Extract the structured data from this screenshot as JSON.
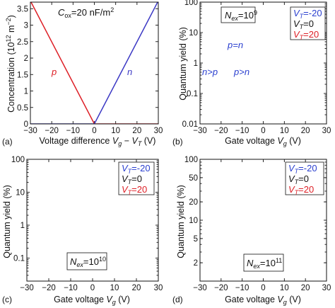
{
  "colors": {
    "n_curve": "#3b38c4",
    "p_curve": "#dd1f26",
    "VT_neg20": "#2a3fcf",
    "VT_0": "#111111",
    "VT_20": "#dd1f26",
    "frame": "#111111"
  },
  "chart_data": [
    {
      "panel": "(a)",
      "type": "line",
      "xlabel": "Voltage difference V_g − V_T  (V)",
      "ylabel": "Concentration (10^12 m^-2)",
      "xlim": [
        -30,
        30
      ],
      "ylim": [
        0,
        3.7
      ],
      "xticks": [
        -30,
        -20,
        -10,
        0,
        10,
        20,
        30
      ],
      "yticks": [
        0,
        0.5,
        1,
        1.5,
        2,
        2.5,
        3,
        3.5
      ],
      "annotations": [
        "C_ox=20 nF/m²"
      ],
      "series": [
        {
          "name": "p",
          "color": "#dd1f26",
          "x": [
            -30,
            0,
            30
          ],
          "y": [
            3.74,
            0.0,
            0.0
          ]
        },
        {
          "name": "n",
          "color": "#3b38c4",
          "x": [
            -30,
            0,
            30
          ],
          "y": [
            0.0,
            0.0,
            3.74
          ]
        }
      ]
    },
    {
      "panel": "(b)",
      "type": "line",
      "scale": "log-y",
      "xlabel": "Gate voltage V_g  (V)",
      "ylabel": "Quantum yield (%)",
      "xlim": [
        -30,
        30
      ],
      "ylim": [
        0.01,
        100
      ],
      "xticks": [
        -30,
        -20,
        -10,
        0,
        10,
        20,
        30
      ],
      "yticks": [
        0.01,
        0.1,
        1,
        10,
        100
      ],
      "annotations": [
        "N_ex=10⁹",
        "p=n",
        "n>p",
        "p>n"
      ],
      "legend_position": "top-right",
      "model": "QY = (1/(2·k·|V_g−V_T|)) × (sqrt(1 + (2·k·|V_g−V_T|)²/N) − 1) × 100, k = 1.246×10^11 m^-2/V, capped at 100",
      "series": [
        {
          "name": "V_T=−20",
          "V_T": -20,
          "N": 1000000000.0
        },
        {
          "name": "V_T=0",
          "V_T": 0,
          "N": 1000000000.0
        },
        {
          "name": "V_T=20",
          "V_T": 20,
          "N": 1000000000.0
        }
      ]
    },
    {
      "panel": "(c)",
      "type": "line",
      "scale": "log-y",
      "xlabel": "Gate voltage V_g  (V)",
      "ylabel": "Quantum yield (%)",
      "xlim": [
        -30,
        30
      ],
      "ylim": [
        0.02,
        100
      ],
      "xticks": [
        -30,
        -20,
        -10,
        0,
        10,
        20,
        30
      ],
      "yticks": [
        0.1,
        1,
        10,
        100
      ],
      "annotations": [
        "N_ex=10¹⁰"
      ],
      "legend_position": "top-right",
      "series": [
        {
          "name": "V_T=−20",
          "V_T": -20,
          "N": 10000000000.0
        },
        {
          "name": "V_T=0",
          "V_T": 0,
          "N": 10000000000.0
        },
        {
          "name": "V_T=20",
          "V_T": 20,
          "N": 10000000000.0
        }
      ]
    },
    {
      "panel": "(d)",
      "type": "line",
      "scale": "log-y",
      "xlabel": "Gate voltage V_g  (V)",
      "ylabel": "Quantum yield (%)",
      "xlim": [
        -30,
        30
      ],
      "ylim": [
        1,
        100
      ],
      "xticks": [
        -30,
        -20,
        -10,
        0,
        10,
        20,
        30
      ],
      "yticks": [
        2,
        5,
        10,
        20,
        50,
        100
      ],
      "annotations": [
        "N_ex=10¹¹"
      ],
      "legend_position": "top-right",
      "series": [
        {
          "name": "V_T=−20",
          "V_T": -20,
          "N": 100000000000.0
        },
        {
          "name": "V_T=0",
          "V_T": 0,
          "N": 100000000000.0
        },
        {
          "name": "V_T=20",
          "V_T": 20,
          "N": 100000000000.0
        }
      ]
    }
  ],
  "text": {
    "a": {
      "tag": "(a)",
      "cox": "C_ox=20 nF/m²",
      "p": "p",
      "n": "n",
      "xlabel": {
        "pre": "Voltage difference ",
        "v1": "V",
        "s1": "g",
        "mid": " − ",
        "v2": "V",
        "s2": "T",
        "post": "  (V)"
      },
      "ylabel": {
        "pre": "Concentration (10",
        "sup1": "12",
        "mid": " m",
        "sup2": "−2",
        "post": ")"
      },
      "xticks": [
        "−30",
        "−20",
        "−10",
        "0",
        "10",
        "20",
        "30"
      ],
      "yticks": [
        "0",
        "0.5",
        "1",
        "1.5",
        "2",
        "2.5",
        "3",
        "3.5"
      ]
    },
    "b": {
      "tag": "(b)",
      "nex": {
        "pre": "N",
        "sub": "ex",
        "mid": "=10",
        "sup": "9"
      },
      "pn": "p=n",
      "ngp": "n>p",
      "pgn": "p>n",
      "xticks": [
        "−30",
        "−20",
        "−10",
        "0",
        "10",
        "20",
        "30"
      ],
      "yticks": [
        "0.01",
        "0.1",
        "1",
        "10",
        "100"
      ]
    },
    "c": {
      "tag": "(c)",
      "nex": {
        "pre": "N",
        "sub": "ex",
        "mid": "=10",
        "sup": "10"
      },
      "xticks": [
        "−30",
        "−20",
        "−10",
        "0",
        "10",
        "20",
        "30"
      ],
      "yticks": [
        "0.1",
        "1",
        "10",
        "100"
      ]
    },
    "d": {
      "tag": "(d)",
      "nex": {
        "pre": "N",
        "sub": "ex",
        "mid": "=10",
        "sup": "11"
      },
      "xticks": [
        "−30",
        "−20",
        "−10",
        "0",
        "10",
        "20",
        "30"
      ],
      "yticks": [
        "2",
        "5",
        "10",
        "20",
        "50",
        "100"
      ]
    },
    "quantum_ylabel": "Quantum yield (%)",
    "gate_xlabel": {
      "pre": "Gate voltage ",
      "v": "V",
      "s": "g",
      "post": "  (V)"
    },
    "legend": [
      {
        "pre": "V",
        "sub": "T",
        "post": "=-20"
      },
      {
        "pre": "V",
        "sub": "T",
        "post": "=0"
      },
      {
        "pre": "V",
        "sub": "T",
        "post": "=20"
      }
    ]
  }
}
